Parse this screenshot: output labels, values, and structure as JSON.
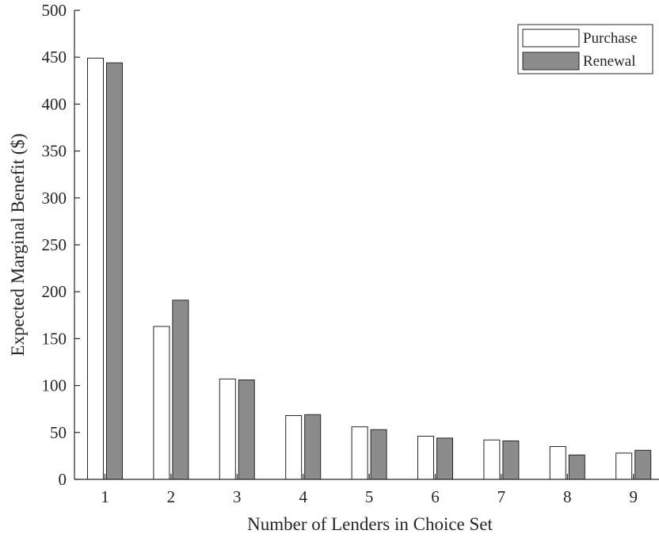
{
  "chart_data": {
    "type": "bar",
    "title": "",
    "xlabel": "Number of Lenders in Choice Set",
    "ylabel": "Expected Marginal Benefit ($)",
    "categories": [
      "1",
      "2",
      "3",
      "4",
      "5",
      "6",
      "7",
      "8",
      "9"
    ],
    "yticks": [
      "0",
      "50",
      "100",
      "150",
      "200",
      "250",
      "300",
      "350",
      "400",
      "450",
      "500"
    ],
    "ylim": [
      0,
      500
    ],
    "grid": "horizontal",
    "legend_position": "top-right",
    "series": [
      {
        "name": "Purchase",
        "color": "#ffffff",
        "values": [
          449,
          163,
          107,
          68,
          56,
          46,
          42,
          35,
          28
        ]
      },
      {
        "name": "Renewal",
        "color": "#8c8c8c",
        "values": [
          444,
          191,
          106,
          69,
          53,
          44,
          41,
          26,
          31
        ]
      }
    ]
  }
}
